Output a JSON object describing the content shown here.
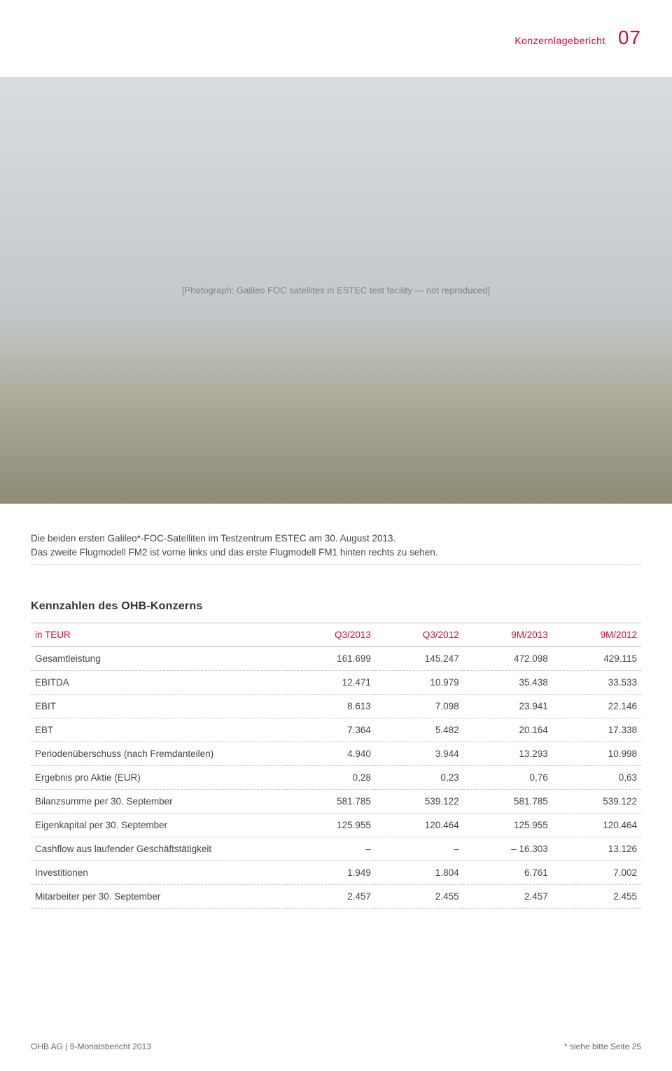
{
  "header": {
    "section_label": "Konzernlagebericht",
    "page_number": "07"
  },
  "photo": {
    "alt_text": "[Photograph: Galileo FOC satellites in ESTEC test facility — not reproduced]"
  },
  "caption": {
    "line1": "Die beiden ersten Galileo*-FOC-Satelliten im Testzentrum ESTEC am 30. August 2013.",
    "line2": "Das zweite Flugmodell FM2 ist vorne links und das erste Flugmodell FM1 hinten rechts zu sehen."
  },
  "table": {
    "title": "Kennzahlen des OHB-Konzerns",
    "header_row_label": "in TEUR",
    "columns": [
      "Q3/2013",
      "Q3/2012",
      "9M/2013",
      "9M/2012"
    ],
    "header_color": "#c8102e",
    "divider_color": "#c9c9c9",
    "text_color": "#444444",
    "font_size_pt": 10,
    "rows": [
      {
        "label": "Gesamtleistung",
        "values": [
          "161.699",
          "145.247",
          "472.098",
          "429.115"
        ]
      },
      {
        "label": "EBITDA",
        "values": [
          "12.471",
          "10.979",
          "35.438",
          "33.533"
        ]
      },
      {
        "label": "EBIT",
        "values": [
          "8.613",
          "7.098",
          "23.941",
          "22.146"
        ]
      },
      {
        "label": "EBT",
        "values": [
          "7.364",
          "5.482",
          "20.164",
          "17.338"
        ]
      },
      {
        "label": "Periodenüberschuss (nach Fremdanteilen)",
        "values": [
          "4.940",
          "3.944",
          "13.293",
          "10.998"
        ]
      },
      {
        "label": "Ergebnis pro Aktie (EUR)",
        "values": [
          "0,28",
          "0,23",
          "0,76",
          "0,63"
        ]
      },
      {
        "label": "Bilanzsumme per 30. September",
        "values": [
          "581.785",
          "539.122",
          "581.785",
          "539.122"
        ]
      },
      {
        "label": "Eigenkapital per 30. September",
        "values": [
          "125.955",
          "120.464",
          "125.955",
          "120.464"
        ]
      },
      {
        "label": "Cashflow aus laufender Geschäftstätigkeit",
        "values": [
          "–",
          "–",
          "– 16.303",
          "13.126"
        ]
      },
      {
        "label": "Investitionen",
        "values": [
          "1.949",
          "1.804",
          "6.761",
          "7.002"
        ]
      },
      {
        "label": "Mitarbeiter per 30. September",
        "values": [
          "2.457",
          "2.455",
          "2.457",
          "2.455"
        ]
      }
    ]
  },
  "footer": {
    "left": "OHB AG | 9-Monatsbericht 2013",
    "right": "* siehe bitte Seite 25"
  },
  "colors": {
    "accent_red": "#c8102e",
    "body_text": "#444444",
    "muted_text": "#666666",
    "background": "#ffffff",
    "dashed_rule": "#c9c9c9"
  }
}
